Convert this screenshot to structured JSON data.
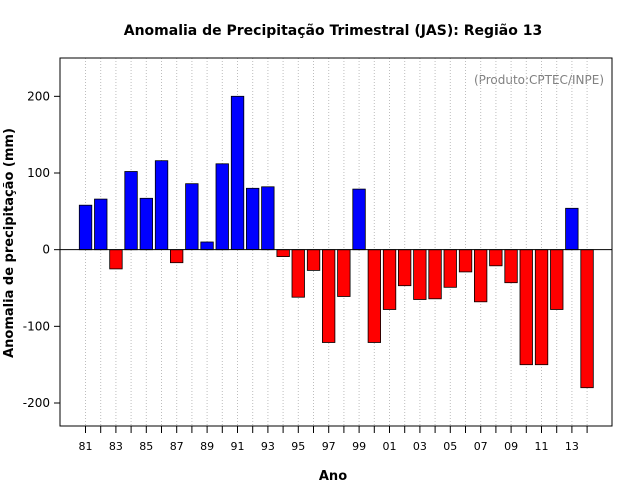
{
  "chart_data": {
    "type": "bar",
    "title": "Anomalia de Precipitação Trimestral (JAS): Região 13",
    "xlabel": "Ano",
    "ylabel": "Anomalia de precipitação (mm)",
    "annotation": "(Produto:CPTEC/INPE)",
    "ylim": [
      -230,
      250
    ],
    "yticks": [
      -200,
      -100,
      0,
      100,
      200
    ],
    "grid": "vertical-dotted",
    "positive_color": "#0000ff",
    "negative_color": "#ff0000",
    "categories": [
      "1981",
      "1982",
      "1983",
      "1984",
      "1985",
      "1986",
      "1987",
      "1988",
      "1989",
      "1990",
      "1991",
      "1992",
      "1993",
      "1994",
      "1995",
      "1996",
      "1997",
      "1998",
      "1999",
      "2000",
      "2001",
      "2002",
      "2003",
      "2004",
      "2005",
      "2006",
      "2007",
      "2008",
      "2009",
      "2010",
      "2011",
      "2012",
      "2013",
      "2014"
    ],
    "values": [
      58,
      66,
      -25,
      102,
      67,
      116,
      -17,
      86,
      10,
      112,
      200,
      80,
      82,
      -9,
      -62,
      -27,
      -121,
      -61,
      79,
      -121,
      -78,
      -47,
      -65,
      -64,
      -49,
      -29,
      -68,
      -21,
      -43,
      -150,
      -150,
      -78,
      54,
      -180
    ],
    "tick_labels": [
      {
        "index": 0,
        "label": "81"
      },
      {
        "index": 2,
        "label": "83"
      },
      {
        "index": 4,
        "label": "85"
      },
      {
        "index": 6,
        "label": "87"
      },
      {
        "index": 8,
        "label": "89"
      },
      {
        "index": 10,
        "label": "91"
      },
      {
        "index": 12,
        "label": "93"
      },
      {
        "index": 14,
        "label": "95"
      },
      {
        "index": 16,
        "label": "97"
      },
      {
        "index": 18,
        "label": "99"
      },
      {
        "index": 20,
        "label": "01"
      },
      {
        "index": 22,
        "label": "03"
      },
      {
        "index": 24,
        "label": "05"
      },
      {
        "index": 26,
        "label": "07"
      },
      {
        "index": 28,
        "label": "09"
      },
      {
        "index": 30,
        "label": "11"
      },
      {
        "index": 32,
        "label": "13"
      }
    ]
  }
}
